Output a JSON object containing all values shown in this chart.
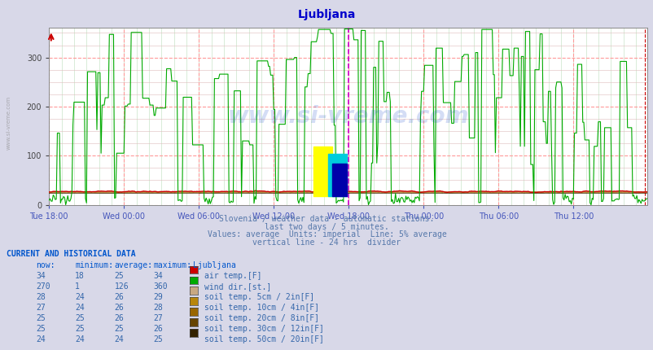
{
  "title": "Ljubljana",
  "title_color": "#0000cc",
  "bg_color": "#d8d8e8",
  "plot_bg_color": "#ffffff",
  "grid_color_major": "#ff9999",
  "grid_color_minor": "#ccddcc",
  "y_min": 0,
  "y_max": 360,
  "y_ticks": [
    0,
    100,
    200,
    300
  ],
  "x_labels": [
    "Tue 18:00",
    "Wed 00:00",
    "Wed 06:00",
    "Wed 12:00",
    "Wed 18:00",
    "Thu 00:00",
    "Thu 06:00",
    "Thu 12:00"
  ],
  "x_label_color": "#4455bb",
  "subtitle_lines": [
    "Slovenia / weather data - automatic stations.",
    "last two days / 5 minutes.",
    "Values: average  Units: imperial  Line: 5% average",
    "vertical line - 24 hrs  divider"
  ],
  "subtitle_color": "#5577aa",
  "watermark": "www.si-vreme.com",
  "watermark_color": "#1144cc",
  "watermark_alpha": 0.18,
  "magenta_vline_color": "#cc00cc",
  "red_vline_color": "#cc0000",
  "table_header_color": "#0055cc",
  "table_text_color": "#3366aa",
  "legend_entries": [
    {
      "label": "air temp.[F]",
      "color": "#cc0000",
      "now": "34",
      "min": "18",
      "avg": "25",
      "max": "34"
    },
    {
      "label": "wind dir.[st.]",
      "color": "#00aa00",
      "now": "270",
      "min": "1",
      "avg": "126",
      "max": "360"
    },
    {
      "label": "soil temp. 5cm / 2in[F]",
      "color": "#c8a882",
      "now": "28",
      "min": "24",
      "avg": "26",
      "max": "29"
    },
    {
      "label": "soil temp. 10cm / 4in[F]",
      "color": "#b8860b",
      "now": "27",
      "min": "24",
      "avg": "26",
      "max": "28"
    },
    {
      "label": "soil temp. 20cm / 8in[F]",
      "color": "#996600",
      "now": "25",
      "min": "25",
      "avg": "26",
      "max": "27"
    },
    {
      "label": "soil temp. 30cm / 12in[F]",
      "color": "#664400",
      "now": "25",
      "min": "25",
      "avg": "25",
      "max": "26"
    },
    {
      "label": "soil temp. 50cm / 20in[F]",
      "color": "#332200",
      "now": "24",
      "min": "24",
      "avg": "24",
      "max": "25"
    }
  ],
  "num_points": 576
}
